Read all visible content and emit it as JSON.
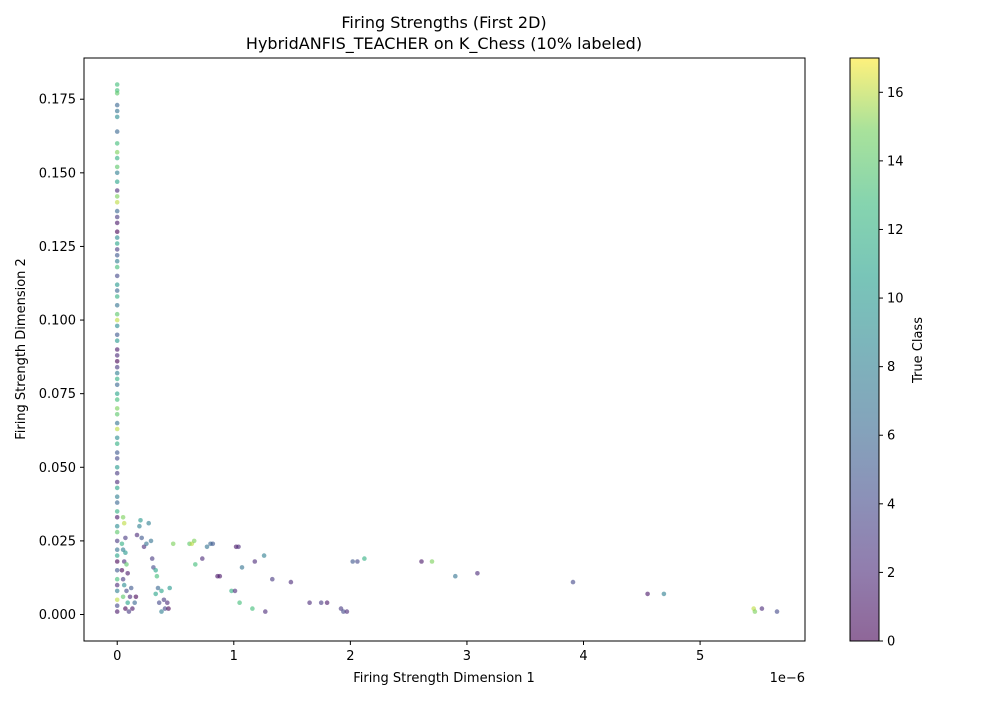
{
  "chart_data": {
    "type": "scatter",
    "title": "Firing Strengths (First 2D)",
    "subtitle": "HybridANFIS_TEACHER on K_Chess (10% labeled)",
    "xlabel": "Firing Strength Dimension 1",
    "ylabel": "Firing Strength Dimension 2",
    "x_scale_label": "1e−6",
    "x_scale": 1e-06,
    "xlim": [
      -2.85e-07,
      5.9e-06
    ],
    "ylim": [
      -0.009,
      0.189
    ],
    "x_ticks": [
      0,
      1,
      2,
      3,
      4,
      5
    ],
    "x_tick_labels": [
      "0",
      "1",
      "2",
      "3",
      "4",
      "5"
    ],
    "y_ticks": [
      0.0,
      0.025,
      0.05,
      0.075,
      0.1,
      0.125,
      0.15,
      0.175
    ],
    "y_tick_labels": [
      "0.000",
      "0.025",
      "0.050",
      "0.075",
      "0.100",
      "0.125",
      "0.150",
      "0.175"
    ],
    "colorbar": {
      "label": "True Class",
      "min": 0,
      "max": 17,
      "ticks": [
        0,
        2,
        4,
        6,
        8,
        10,
        12,
        14,
        16
      ],
      "tick_labels": [
        "0",
        "2",
        "4",
        "6",
        "8",
        "10",
        "12",
        "14",
        "16"
      ],
      "colormap": "viridis",
      "alpha": 0.6
    },
    "points_xe6_y_class": [
      [
        0,
        0.18,
        13
      ],
      [
        0,
        0.178,
        13
      ],
      [
        0,
        0.177,
        14
      ],
      [
        0,
        0.173,
        6
      ],
      [
        0,
        0.171,
        7
      ],
      [
        0,
        0.169,
        9
      ],
      [
        0,
        0.164,
        6
      ],
      [
        0,
        0.16,
        13
      ],
      [
        0,
        0.157,
        15
      ],
      [
        0,
        0.155,
        12
      ],
      [
        0,
        0.152,
        14
      ],
      [
        0,
        0.15,
        8
      ],
      [
        0,
        0.147,
        11
      ],
      [
        0,
        0.144,
        2
      ],
      [
        0,
        0.142,
        15
      ],
      [
        0,
        0.14,
        16
      ],
      [
        0,
        0.137,
        6
      ],
      [
        0,
        0.135,
        3
      ],
      [
        0,
        0.133,
        1
      ],
      [
        0,
        0.13,
        0
      ],
      [
        0,
        0.128,
        9
      ],
      [
        0,
        0.126,
        11
      ],
      [
        0,
        0.124,
        3
      ],
      [
        0,
        0.122,
        5
      ],
      [
        0,
        0.12,
        8
      ],
      [
        0,
        0.118,
        13
      ],
      [
        0,
        0.115,
        4
      ],
      [
        0,
        0.112,
        10
      ],
      [
        0,
        0.11,
        6
      ],
      [
        0,
        0.108,
        12
      ],
      [
        0,
        0.105,
        7
      ],
      [
        0,
        0.102,
        14
      ],
      [
        0,
        0.1,
        16
      ],
      [
        0,
        0.098,
        9
      ],
      [
        0,
        0.095,
        5
      ],
      [
        0,
        0.093,
        10
      ],
      [
        0,
        0.09,
        1
      ],
      [
        0,
        0.088,
        2
      ],
      [
        0,
        0.086,
        0
      ],
      [
        0,
        0.084,
        3
      ],
      [
        0,
        0.082,
        8
      ],
      [
        0,
        0.08,
        12
      ],
      [
        0,
        0.078,
        6
      ],
      [
        0,
        0.075,
        11
      ],
      [
        0,
        0.073,
        13
      ],
      [
        0,
        0.07,
        15
      ],
      [
        0,
        0.068,
        14
      ],
      [
        0,
        0.065,
        7
      ],
      [
        0,
        0.063,
        16
      ],
      [
        0,
        0.06,
        9
      ],
      [
        0,
        0.058,
        12
      ],
      [
        0,
        0.055,
        5
      ],
      [
        0,
        0.053,
        4
      ],
      [
        0,
        0.05,
        10
      ],
      [
        0,
        0.048,
        3
      ],
      [
        0,
        0.045,
        2
      ],
      [
        0,
        0.043,
        11
      ],
      [
        0,
        0.04,
        8
      ],
      [
        0,
        0.038,
        6
      ],
      [
        0,
        0.035,
        12
      ],
      [
        0,
        0.033,
        1
      ],
      [
        0,
        0.03,
        9
      ],
      [
        0,
        0.028,
        14
      ],
      [
        0,
        0.025,
        3
      ],
      [
        0,
        0.022,
        7
      ],
      [
        0,
        0.02,
        11
      ],
      [
        0,
        0.018,
        0
      ],
      [
        0,
        0.015,
        5
      ],
      [
        0,
        0.012,
        13
      ],
      [
        0,
        0.01,
        2
      ],
      [
        0,
        0.008,
        8
      ],
      [
        0,
        0.005,
        16
      ],
      [
        0,
        0.003,
        4
      ],
      [
        0,
        0.001,
        1
      ],
      [
        0.05,
        0.033,
        15
      ],
      [
        0.06,
        0.031,
        16
      ],
      [
        0.07,
        0.026,
        3
      ],
      [
        0.04,
        0.024,
        12
      ],
      [
        0.05,
        0.022,
        8
      ],
      [
        0.07,
        0.021,
        10
      ],
      [
        0.06,
        0.018,
        2
      ],
      [
        0.08,
        0.017,
        14
      ],
      [
        0.04,
        0.015,
        0
      ],
      [
        0.05,
        0.012,
        3
      ],
      [
        0.09,
        0.014,
        1
      ],
      [
        0.06,
        0.01,
        9
      ],
      [
        0.08,
        0.008,
        4
      ],
      [
        0.05,
        0.006,
        14
      ],
      [
        0.09,
        0.004,
        11
      ],
      [
        0.07,
        0.002,
        0
      ],
      [
        0.1,
        0.001,
        3
      ],
      [
        0.12,
        0.009,
        5
      ],
      [
        0.11,
        0.006,
        2
      ],
      [
        0.15,
        0.004,
        6
      ],
      [
        0.13,
        0.002,
        1
      ],
      [
        0.16,
        0.006,
        0
      ],
      [
        0.17,
        0.027,
        2
      ],
      [
        0.19,
        0.03,
        8
      ],
      [
        0.2,
        0.032,
        10
      ],
      [
        0.21,
        0.026,
        5
      ],
      [
        0.23,
        0.023,
        2
      ],
      [
        0.25,
        0.024,
        7
      ],
      [
        0.27,
        0.031,
        8
      ],
      [
        0.29,
        0.025,
        7
      ],
      [
        0.3,
        0.019,
        3
      ],
      [
        0.31,
        0.016,
        4
      ],
      [
        0.33,
        0.015,
        11
      ],
      [
        0.34,
        0.013,
        13
      ],
      [
        0.33,
        0.007,
        11
      ],
      [
        0.35,
        0.009,
        6
      ],
      [
        0.36,
        0.004,
        4
      ],
      [
        0.38,
        0.008,
        11
      ],
      [
        0.4,
        0.005,
        3
      ],
      [
        0.41,
        0.002,
        4
      ],
      [
        0.38,
        0.001,
        8
      ],
      [
        0.43,
        0.004,
        2
      ],
      [
        0.44,
        0.002,
        0
      ],
      [
        0.45,
        0.009,
        10
      ],
      [
        0.48,
        0.024,
        15
      ],
      [
        0.62,
        0.024,
        14
      ],
      [
        0.64,
        0.024,
        16
      ],
      [
        0.66,
        0.025,
        15
      ],
      [
        0.67,
        0.017,
        13
      ],
      [
        0.73,
        0.019,
        2
      ],
      [
        0.77,
        0.023,
        7
      ],
      [
        0.8,
        0.024,
        6
      ],
      [
        0.82,
        0.024,
        5
      ],
      [
        0.86,
        0.013,
        1
      ],
      [
        0.88,
        0.013,
        1
      ],
      [
        0.98,
        0.008,
        12
      ],
      [
        1.01,
        0.008,
        2
      ],
      [
        1.02,
        0.023,
        1
      ],
      [
        1.04,
        0.023,
        2
      ],
      [
        1.05,
        0.004,
        13
      ],
      [
        1.07,
        0.016,
        7
      ],
      [
        1.16,
        0.002,
        13
      ],
      [
        1.18,
        0.018,
        2
      ],
      [
        1.26,
        0.02,
        8
      ],
      [
        1.27,
        0.001,
        2
      ],
      [
        1.33,
        0.012,
        3
      ],
      [
        1.49,
        0.011,
        2
      ],
      [
        1.65,
        0.004,
        2
      ],
      [
        1.75,
        0.004,
        3
      ],
      [
        1.8,
        0.004,
        1
      ],
      [
        1.92,
        0.002,
        3
      ],
      [
        1.94,
        0.001,
        4
      ],
      [
        1.97,
        0.001,
        2
      ],
      [
        2.02,
        0.018,
        5
      ],
      [
        2.06,
        0.018,
        4
      ],
      [
        2.12,
        0.019,
        12
      ],
      [
        2.61,
        0.018,
        1
      ],
      [
        2.7,
        0.018,
        15
      ],
      [
        2.9,
        0.013,
        7
      ],
      [
        3.09,
        0.014,
        2
      ],
      [
        3.91,
        0.011,
        4
      ],
      [
        4.55,
        0.007,
        1
      ],
      [
        4.69,
        0.007,
        8
      ],
      [
        5.46,
        0.002,
        16
      ],
      [
        5.47,
        0.001,
        15
      ],
      [
        5.53,
        0.002,
        2
      ],
      [
        5.66,
        0.001,
        4
      ]
    ]
  }
}
